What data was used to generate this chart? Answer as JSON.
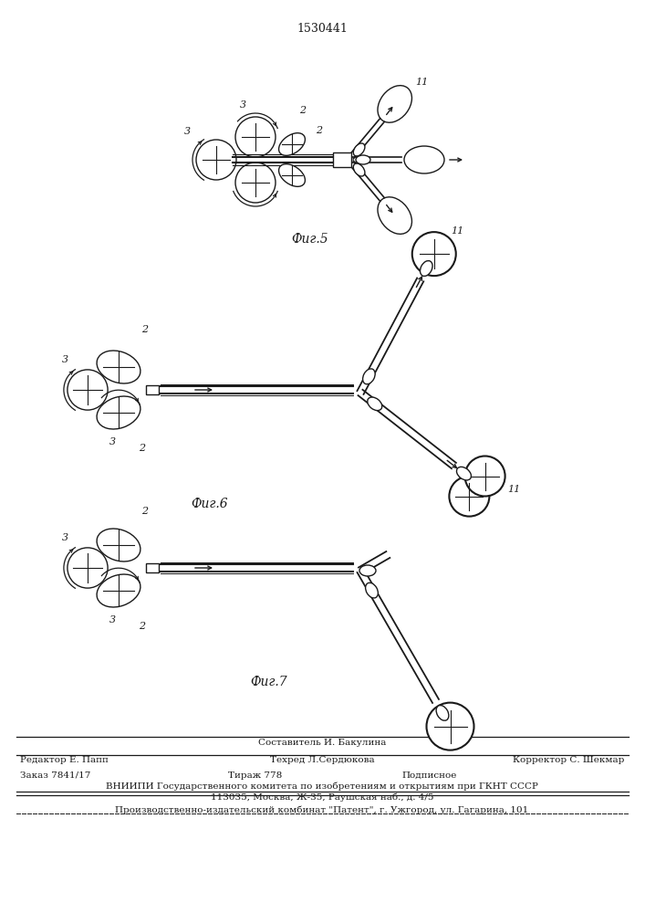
{
  "patent_number": "1530441",
  "bg_color": "#ffffff",
  "line_color": "#1a1a1a",
  "fig5_caption": "Фиг.5",
  "fig6_caption": "Фиг.6",
  "fig7_caption": "Фиг.7",
  "footer_line1_center": "Составитель И. Бакулина",
  "footer_line2_left": "Редактор Е. Папп",
  "footer_line2_center": "Техред Л.Сердюкова",
  "footer_line2_right": "Корректор С. Шекмар",
  "footer_line3_left": "Заказ 7841/17",
  "footer_line3_center": "Тираж 778",
  "footer_line3_right": "Подписное",
  "footer_line4": "ВНИИПИ Государственного комитета по изобретениям и открытиям при ГКНТ СССР",
  "footer_line5": "113035, Москва, Ж-35, Раушская наб., д. 4/5",
  "footer_line6": "Производственно-издательский комбинат \"Патент\", г. Ужгород, ул. Гагарина, 101"
}
